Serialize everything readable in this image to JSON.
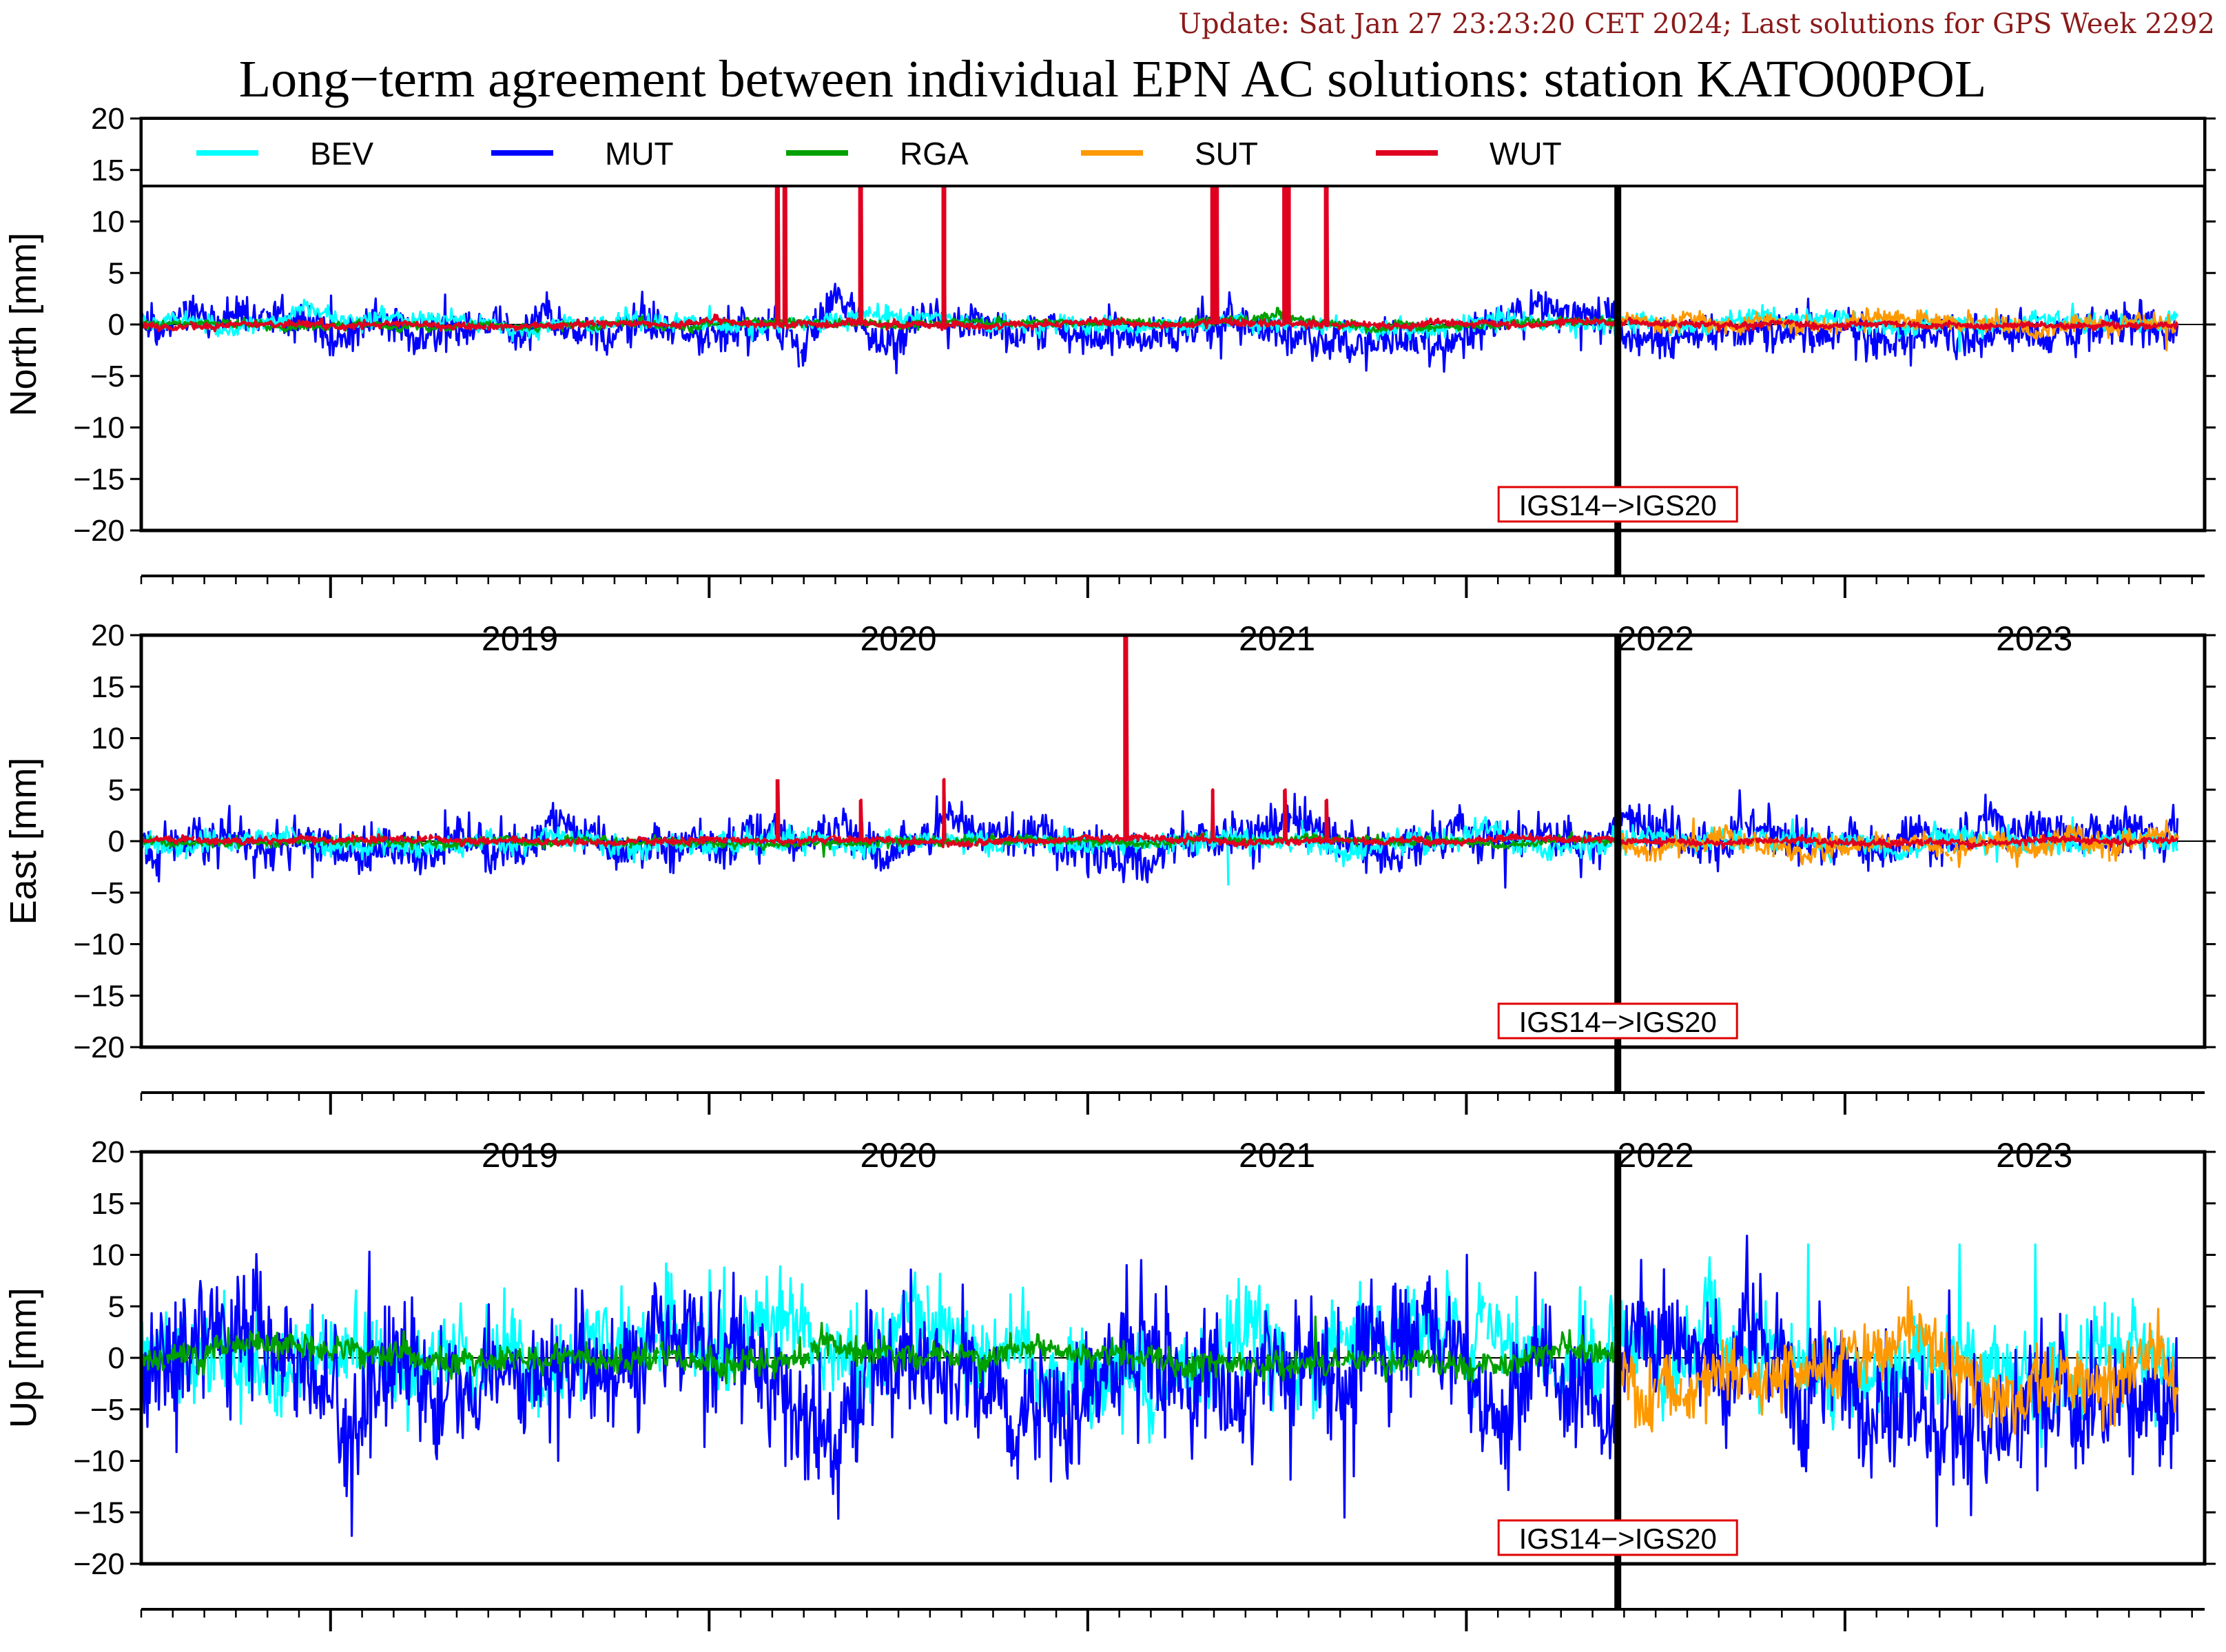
{
  "header": {
    "update": "Update: Sat Jan 27 23:23:20 CET 2024; Last solutions for GPS Week 2292",
    "title": "Long−term agreement between individual EPN AC solutions: station KATO00POL"
  },
  "colors": {
    "BEV": "#00ffff",
    "MUT": "#0000ff",
    "RGA": "#00a000",
    "SUT": "#ff9900",
    "WUT": "#e00020",
    "header": "#8b1a1a",
    "note_border": "#e00000"
  },
  "legend": [
    {
      "name": "BEV",
      "color": "#00ffff"
    },
    {
      "name": "MUT",
      "color": "#0000ff"
    },
    {
      "name": "RGA",
      "color": "#00a000"
    },
    {
      "name": "SUT",
      "color": "#ff9900"
    },
    {
      "name": "WUT",
      "color": "#e00020"
    }
  ],
  "chart_data": [
    {
      "type": "line",
      "ylabel": "North [mm]",
      "xlabel": "",
      "ylim": [
        -20,
        20
      ],
      "yticks": [
        "20",
        "15",
        "10",
        "5",
        "0",
        "−5",
        "−10",
        "−15",
        "−20"
      ],
      "xlim": [
        2018.5,
        2023.95
      ],
      "years": [
        "2019",
        "2020",
        "2021",
        "2022",
        "2023"
      ],
      "frame_change": {
        "label": "IGS14−>IGS20",
        "x": 2022.4
      },
      "series": [
        {
          "name": "MUT",
          "noise": 0.9,
          "bias": -0.3,
          "spikes": [
            [
              2019.0,
              2.8
            ],
            [
              2019.3,
              2.9
            ],
            [
              2019.7,
              -2.5
            ],
            [
              2020.1,
              -3.0
            ],
            [
              2021.3,
              2.7
            ],
            [
              2021.35,
              -3.3
            ],
            [
              2022.3,
              -2.5
            ],
            [
              2022.9,
              2.5
            ]
          ]
        },
        {
          "name": "BEV",
          "noise": 0.4,
          "bias": 0.1,
          "spikes": [
            [
              2020.0,
              1.8
            ],
            [
              2023.3,
              -2.6
            ],
            [
              2023.6,
              2.0
            ]
          ],
          "start": 2018.5
        },
        {
          "name": "RGA",
          "noise": 0.2,
          "bias": 0.1,
          "spikes": [
            [
              2021.5,
              1.6
            ]
          ],
          "end": 2022.4
        },
        {
          "name": "SUT",
          "noise": 0.4,
          "bias": 0.2,
          "spikes": [
            [
              2023.4,
              1.5
            ],
            [
              2023.85,
              -2.5
            ]
          ],
          "start": 2022.4
        },
        {
          "name": "WUT",
          "noise": 0.15,
          "bias": 0.0,
          "spikes": [
            [
              2020.18,
              20
            ],
            [
              2020.2,
              20
            ],
            [
              2020.4,
              20
            ],
            [
              2020.62,
              20
            ],
            [
              2021.33,
              20
            ],
            [
              2021.34,
              20
            ],
            [
              2021.52,
              20
            ],
            [
              2021.53,
              20
            ],
            [
              2021.63,
              20
            ]
          ]
        }
      ]
    },
    {
      "type": "line",
      "ylabel": "East [mm]",
      "xlabel": "",
      "ylim": [
        -20,
        20
      ],
      "yticks": [
        "20",
        "15",
        "10",
        "5",
        "0",
        "−5",
        "−10",
        "−15",
        "−20"
      ],
      "xlim": [
        2018.5,
        2023.95
      ],
      "years": [
        "2019",
        "2020",
        "2021",
        "2022",
        "2023"
      ],
      "frame_change": {
        "label": "IGS14−>IGS20",
        "x": 2022.4
      },
      "series": [
        {
          "name": "MUT",
          "noise": 1.0,
          "bias": 0.3,
          "spikes": [
            [
              2018.95,
              -3.5
            ],
            [
              2019.3,
              3.0
            ],
            [
              2020.8,
              2.8
            ],
            [
              2021.0,
              -3.5
            ],
            [
              2021.25,
              2.9
            ],
            [
              2022.1,
              -4.5
            ],
            [
              2022.3,
              -3.5
            ]
          ]
        },
        {
          "name": "BEV",
          "noise": 0.5,
          "bias": -0.1,
          "spikes": [
            [
              2021.37,
              -4.3
            ],
            [
              2023.4,
              -2.0
            ],
            [
              2023.6,
              2.3
            ]
          ],
          "start": 2018.5
        },
        {
          "name": "RGA",
          "noise": 0.2,
          "bias": 0.0,
          "spikes": [
            [
              2020.3,
              -1.5
            ]
          ],
          "end": 2022.4
        },
        {
          "name": "SUT",
          "noise": 0.5,
          "bias": -0.2,
          "spikes": [
            [
              2022.6,
              2.2
            ],
            [
              2023.3,
              -2.5
            ],
            [
              2023.85,
              2.0
            ]
          ],
          "start": 2022.4
        },
        {
          "name": "WUT",
          "noise": 0.15,
          "bias": 0.0,
          "spikes": [
            [
              2020.18,
              6
            ],
            [
              2020.4,
              4
            ],
            [
              2020.62,
              6
            ],
            [
              2021.1,
              20
            ],
            [
              2021.33,
              5
            ],
            [
              2021.52,
              5
            ],
            [
              2021.63,
              4
            ]
          ]
        }
      ]
    },
    {
      "type": "line",
      "ylabel": "Up [mm]",
      "xlabel": "",
      "ylim": [
        -20,
        20
      ],
      "yticks": [
        "20",
        "15",
        "10",
        "5",
        "0",
        "−5",
        "−10",
        "−15",
        "−20"
      ],
      "xlim": [
        2018.5,
        2023.95
      ],
      "years": [
        "2019",
        "2020",
        "2021",
        "2022",
        "2023"
      ],
      "frame_change": {
        "label": "IGS14−>IGS20",
        "x": 2022.4
      },
      "series": [
        {
          "name": "BEV",
          "noise": 2.0,
          "bias": 0.5,
          "spikes": [
            [
              2020.0,
              8.5
            ],
            [
              2022.9,
              11
            ],
            [
              2023.3,
              11
            ],
            [
              2023.5,
              11
            ]
          ],
          "start": 2018.5
        },
        {
          "name": "MUT",
          "noise": 3.0,
          "bias": -1.5,
          "spikes": [
            [
              2019.1,
              10.3
            ],
            [
              2019.6,
              -10
            ],
            [
              2020.2,
              -10.5
            ],
            [
              2021.1,
              9.0
            ],
            [
              2021.7,
              -11.5
            ],
            [
              2022.0,
              10.0
            ]
          ]
        },
        {
          "name": "RGA",
          "noise": 0.6,
          "bias": 0.3,
          "spikes": [
            [
              2021.6,
              4.0
            ]
          ],
          "end": 2022.4
        },
        {
          "name": "SUT",
          "noise": 1.5,
          "bias": -1.5,
          "spikes": [
            [
              2023.3,
              -5.5
            ],
            [
              2023.7,
              -6.5
            ]
          ],
          "start": 2022.4
        },
        {
          "name": "WUT",
          "noise": 0.0,
          "bias": 0.0,
          "spikes": [],
          "end": 2018.5
        }
      ]
    }
  ]
}
